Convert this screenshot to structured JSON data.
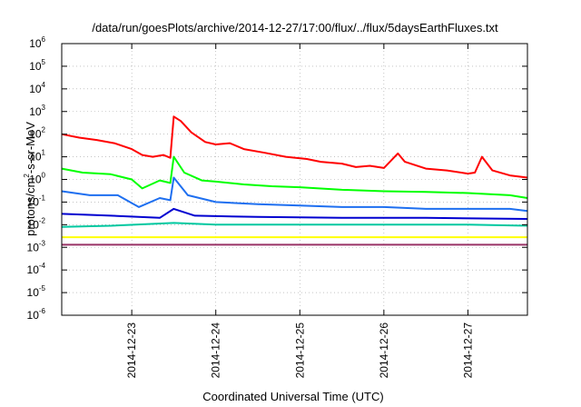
{
  "chart_data": {
    "type": "line",
    "title": "/data/run/goesPlots/archive/2014-12-27/17:00/flux/../flux/5daysEarthFluxes.txt",
    "xlabel": "Coordinated Universal Time (UTC)",
    "ylabel_parts": [
      "protons/cm",
      "2",
      "-s-sr-MeV"
    ],
    "yscale": "log",
    "ylim": [
      1e-06,
      1000000.0
    ],
    "xlim": [
      "2014-12-22T04:00",
      "2014-12-27T17:00"
    ],
    "ytick_exponents": [
      -6,
      -5,
      -4,
      -3,
      -2,
      -1,
      0,
      1,
      2,
      3,
      4,
      5,
      6
    ],
    "ytick_base": "10",
    "xticks": [
      {
        "t": "2014-12-23T00:00",
        "label": "2014-12-23"
      },
      {
        "t": "2014-12-24T00:00",
        "label": "2014-12-24"
      },
      {
        "t": "2014-12-25T00:00",
        "label": "2014-12-25"
      },
      {
        "t": "2014-12-26T00:00",
        "label": "2014-12-26"
      },
      {
        "t": "2014-12-27T00:00",
        "label": "2014-12-27"
      }
    ],
    "grid": true,
    "legend": "none",
    "series": [
      {
        "color": "#ff0000",
        "points": [
          [
            "2014-12-22T04:00",
            100
          ],
          [
            "2014-12-22T09:00",
            70
          ],
          [
            "2014-12-22T14:00",
            55
          ],
          [
            "2014-12-22T19:00",
            40
          ],
          [
            "2014-12-23T00:00",
            22
          ],
          [
            "2014-12-23T03:00",
            12
          ],
          [
            "2014-12-23T06:00",
            10
          ],
          [
            "2014-12-23T09:00",
            12
          ],
          [
            "2014-12-23T11:00",
            9
          ],
          [
            "2014-12-23T12:00",
            600
          ],
          [
            "2014-12-23T14:00",
            380
          ],
          [
            "2014-12-23T17:00",
            120
          ],
          [
            "2014-12-23T21:00",
            45
          ],
          [
            "2014-12-24T00:00",
            35
          ],
          [
            "2014-12-24T04:00",
            40
          ],
          [
            "2014-12-24T08:00",
            22
          ],
          [
            "2014-12-24T14:00",
            15
          ],
          [
            "2014-12-24T20:00",
            10
          ],
          [
            "2014-12-25T02:00",
            8
          ],
          [
            "2014-12-25T06:00",
            6
          ],
          [
            "2014-12-25T12:00",
            5
          ],
          [
            "2014-12-25T16:00",
            3.5
          ],
          [
            "2014-12-25T20:00",
            4
          ],
          [
            "2014-12-26T00:00",
            3.2
          ],
          [
            "2014-12-26T04:00",
            14
          ],
          [
            "2014-12-26T06:00",
            6
          ],
          [
            "2014-12-26T12:00",
            3
          ],
          [
            "2014-12-26T18:00",
            2.5
          ],
          [
            "2014-12-27T00:00",
            1.8
          ],
          [
            "2014-12-27T02:00",
            2
          ],
          [
            "2014-12-27T04:00",
            10
          ],
          [
            "2014-12-27T07:00",
            2.5
          ],
          [
            "2014-12-27T12:00",
            1.5
          ],
          [
            "2014-12-27T17:00",
            1.2
          ]
        ]
      },
      {
        "color": "#00ff00",
        "points": [
          [
            "2014-12-22T04:00",
            3
          ],
          [
            "2014-12-22T10:00",
            2
          ],
          [
            "2014-12-22T18:00",
            1.7
          ],
          [
            "2014-12-23T00:00",
            1
          ],
          [
            "2014-12-23T03:00",
            0.4
          ],
          [
            "2014-12-23T08:00",
            0.9
          ],
          [
            "2014-12-23T11:00",
            0.7
          ],
          [
            "2014-12-23T12:00",
            10
          ],
          [
            "2014-12-23T15:00",
            2
          ],
          [
            "2014-12-23T20:00",
            0.9
          ],
          [
            "2014-12-24T00:00",
            0.8
          ],
          [
            "2014-12-24T08:00",
            0.6
          ],
          [
            "2014-12-24T16:00",
            0.5
          ],
          [
            "2014-12-25T00:00",
            0.45
          ],
          [
            "2014-12-25T12:00",
            0.35
          ],
          [
            "2014-12-26T00:00",
            0.3
          ],
          [
            "2014-12-26T12:00",
            0.28
          ],
          [
            "2014-12-27T00:00",
            0.25
          ],
          [
            "2014-12-27T12:00",
            0.2
          ],
          [
            "2014-12-27T17:00",
            0.15
          ]
        ]
      },
      {
        "color": "#1e6ff0",
        "points": [
          [
            "2014-12-22T04:00",
            0.3
          ],
          [
            "2014-12-22T12:00",
            0.2
          ],
          [
            "2014-12-22T20:00",
            0.2
          ],
          [
            "2014-12-23T02:00",
            0.06
          ],
          [
            "2014-12-23T08:00",
            0.15
          ],
          [
            "2014-12-23T11:00",
            0.12
          ],
          [
            "2014-12-23T12:00",
            1.2
          ],
          [
            "2014-12-23T16:00",
            0.2
          ],
          [
            "2014-12-24T00:00",
            0.1
          ],
          [
            "2014-12-24T12:00",
            0.08
          ],
          [
            "2014-12-25T00:00",
            0.07
          ],
          [
            "2014-12-25T12:00",
            0.06
          ],
          [
            "2014-12-26T00:00",
            0.06
          ],
          [
            "2014-12-26T12:00",
            0.05
          ],
          [
            "2014-12-27T00:00",
            0.05
          ],
          [
            "2014-12-27T12:00",
            0.05
          ],
          [
            "2014-12-27T17:00",
            0.04
          ]
        ]
      },
      {
        "color": "#0000d0",
        "points": [
          [
            "2014-12-22T04:00",
            0.03
          ],
          [
            "2014-12-22T18:00",
            0.025
          ],
          [
            "2014-12-23T08:00",
            0.02
          ],
          [
            "2014-12-23T12:00",
            0.05
          ],
          [
            "2014-12-23T18:00",
            0.025
          ],
          [
            "2014-12-24T12:00",
            0.022
          ],
          [
            "2014-12-25T12:00",
            0.02
          ],
          [
            "2014-12-26T12:00",
            0.02
          ],
          [
            "2014-12-27T17:00",
            0.018
          ]
        ]
      },
      {
        "color": "#00c8a0",
        "points": [
          [
            "2014-12-22T04:00",
            0.008
          ],
          [
            "2014-12-22T18:00",
            0.009
          ],
          [
            "2014-12-23T12:00",
            0.012
          ],
          [
            "2014-12-24T00:00",
            0.01
          ],
          [
            "2014-12-25T00:00",
            0.01
          ],
          [
            "2014-12-26T00:00",
            0.01
          ],
          [
            "2014-12-27T00:00",
            0.01
          ],
          [
            "2014-12-27T17:00",
            0.009
          ]
        ]
      },
      {
        "color": "#ffff00",
        "points": [
          [
            "2014-12-22T04:00",
            0.0028
          ],
          [
            "2014-12-27T17:00",
            0.0028
          ]
        ]
      },
      {
        "color": "#993366",
        "points": [
          [
            "2014-12-22T04:00",
            0.0013
          ],
          [
            "2014-12-27T17:00",
            0.0013
          ]
        ]
      }
    ]
  }
}
